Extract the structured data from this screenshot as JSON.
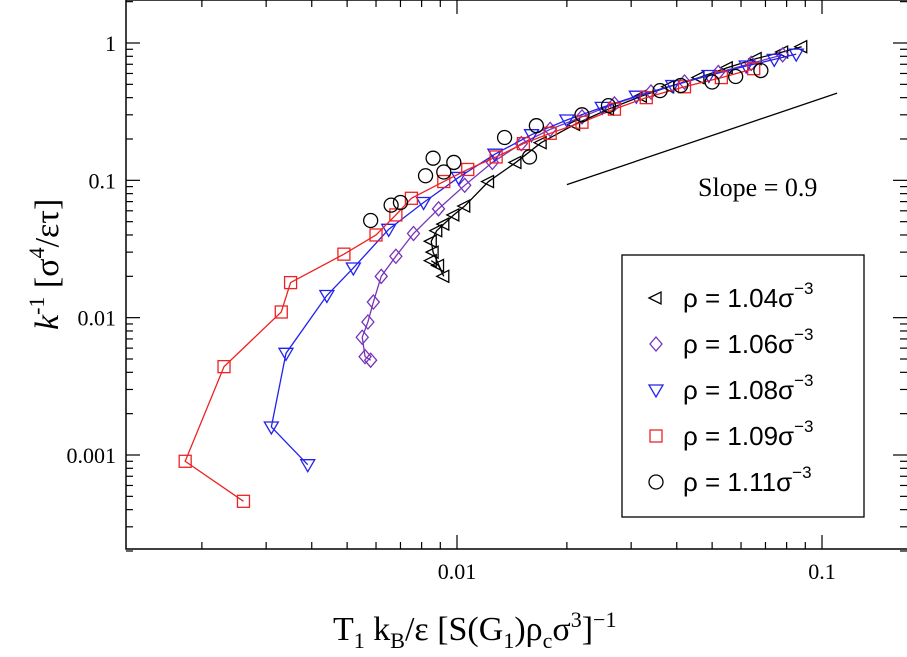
{
  "chart_data": {
    "type": "scatter",
    "xscale": "log",
    "yscale": "log",
    "xlim": [
      0.0015,
      0.17
    ],
    "ylim": [
      0.0002,
      2.5
    ],
    "x_ticks": [
      {
        "value": 0.01,
        "label": "0.01"
      },
      {
        "value": 0.1,
        "label": "0.1"
      }
    ],
    "y_ticks": [
      {
        "value": 0.001,
        "label": "0.001"
      },
      {
        "value": 0.01,
        "label": "0.01"
      },
      {
        "value": 0.1,
        "label": "0.1"
      },
      {
        "value": 1,
        "label": "1"
      }
    ],
    "xlabel": {
      "main": "T",
      "sub1": "1",
      "mid": " k",
      "sub2": "B",
      "tail": "/ε [S(G",
      "sub3": "1",
      "tail2": ")ρ",
      "sub4": "c",
      "tail3": "σ",
      "sup1": "3",
      "tail4": "]",
      "sup2": "−1"
    },
    "ylabel": {
      "main": "k",
      "sup1": "-1",
      "tail": " [σ",
      "sup2": "4",
      "tail2": "/ετ]"
    },
    "annotation": {
      "text": "Slope = 0.9",
      "slope": 0.9,
      "x_range": [
        0.02,
        0.11
      ],
      "y_start": 0.093
    },
    "legend_position": "bottom-right",
    "series": [
      {
        "name": "ρ = 1.04σ",
        "name_sup": "−3",
        "color": "#000000",
        "marker": "triangle-left",
        "line": true,
        "points": [
          [
            0.0085,
            0.026
          ],
          [
            0.0089,
            0.024
          ],
          [
            0.0092,
            0.02
          ],
          [
            0.0086,
            0.03
          ],
          [
            0.0085,
            0.036
          ],
          [
            0.0088,
            0.043
          ],
          [
            0.0092,
            0.048
          ],
          [
            0.0098,
            0.056
          ],
          [
            0.0105,
            0.065
          ],
          [
            0.0122,
            0.098
          ],
          [
            0.0145,
            0.135
          ],
          [
            0.017,
            0.188
          ],
          [
            0.021,
            0.255
          ],
          [
            0.026,
            0.33
          ],
          [
            0.032,
            0.41
          ],
          [
            0.038,
            0.48
          ],
          [
            0.046,
            0.56
          ],
          [
            0.055,
            0.66
          ],
          [
            0.066,
            0.77
          ],
          [
            0.078,
            0.86
          ],
          [
            0.088,
            0.94
          ]
        ]
      },
      {
        "name": "ρ = 1.06σ",
        "name_sup": "−3",
        "color": "#7733bb",
        "marker": "diamond",
        "line": true,
        "points": [
          [
            0.0058,
            0.0049
          ],
          [
            0.0056,
            0.0052
          ],
          [
            0.0055,
            0.0072
          ],
          [
            0.0057,
            0.0093
          ],
          [
            0.0059,
            0.013
          ],
          [
            0.0062,
            0.02
          ],
          [
            0.0068,
            0.028
          ],
          [
            0.0076,
            0.041
          ],
          [
            0.0089,
            0.062
          ],
          [
            0.0105,
            0.092
          ],
          [
            0.0125,
            0.135
          ],
          [
            0.015,
            0.185
          ],
          [
            0.018,
            0.235
          ],
          [
            0.022,
            0.29
          ],
          [
            0.027,
            0.36
          ],
          [
            0.034,
            0.44
          ],
          [
            0.042,
            0.52
          ],
          [
            0.052,
            0.61
          ],
          [
            0.064,
            0.71
          ],
          [
            0.078,
            0.82
          ]
        ]
      },
      {
        "name": "ρ = 1.08σ",
        "name_sup": "−3",
        "color": "#2222ee",
        "marker": "triangle-down",
        "line": true,
        "points": [
          [
            0.0039,
            0.00085
          ],
          [
            0.0031,
            0.0016
          ],
          [
            0.0034,
            0.0055
          ],
          [
            0.0044,
            0.0145
          ],
          [
            0.0052,
            0.023
          ],
          [
            0.0065,
            0.044
          ],
          [
            0.0081,
            0.069
          ],
          [
            0.0101,
            0.105
          ],
          [
            0.0127,
            0.155
          ],
          [
            0.016,
            0.215
          ],
          [
            0.02,
            0.275
          ],
          [
            0.025,
            0.34
          ],
          [
            0.031,
            0.41
          ],
          [
            0.039,
            0.49
          ],
          [
            0.049,
            0.58
          ],
          [
            0.062,
            0.68
          ],
          [
            0.074,
            0.76
          ],
          [
            0.085,
            0.83
          ]
        ]
      },
      {
        "name": "ρ = 1.09σ",
        "name_sup": "−3",
        "color": "#ee2222",
        "marker": "square",
        "line": true,
        "points": [
          [
            0.0026,
            0.00046
          ],
          [
            0.0018,
            0.0009
          ],
          [
            0.0023,
            0.0044
          ],
          [
            0.0033,
            0.011
          ],
          [
            0.0035,
            0.018
          ],
          [
            0.0049,
            0.029
          ],
          [
            0.006,
            0.04
          ],
          [
            0.0068,
            0.056
          ],
          [
            0.0075,
            0.074
          ],
          [
            0.0092,
            0.098
          ],
          [
            0.0107,
            0.12
          ],
          [
            0.0128,
            0.148
          ],
          [
            0.0152,
            0.185
          ],
          [
            0.018,
            0.22
          ],
          [
            0.022,
            0.265
          ],
          [
            0.027,
            0.33
          ],
          [
            0.033,
            0.4
          ],
          [
            0.042,
            0.48
          ],
          [
            0.053,
            0.56
          ],
          [
            0.065,
            0.65
          ]
        ]
      },
      {
        "name": "ρ = 1.11σ",
        "name_sup": "−3",
        "color": "#000000",
        "marker": "circle",
        "line": false,
        "points": [
          [
            0.0058,
            0.051
          ],
          [
            0.0066,
            0.066
          ],
          [
            0.007,
            0.069
          ],
          [
            0.0082,
            0.108
          ],
          [
            0.0086,
            0.145
          ],
          [
            0.0092,
            0.115
          ],
          [
            0.0098,
            0.135
          ],
          [
            0.0135,
            0.205
          ],
          [
            0.0158,
            0.148
          ],
          [
            0.0165,
            0.25
          ],
          [
            0.022,
            0.3
          ],
          [
            0.026,
            0.35
          ],
          [
            0.036,
            0.45
          ],
          [
            0.041,
            0.49
          ],
          [
            0.05,
            0.52
          ],
          [
            0.058,
            0.57
          ],
          [
            0.068,
            0.63
          ]
        ]
      }
    ]
  }
}
